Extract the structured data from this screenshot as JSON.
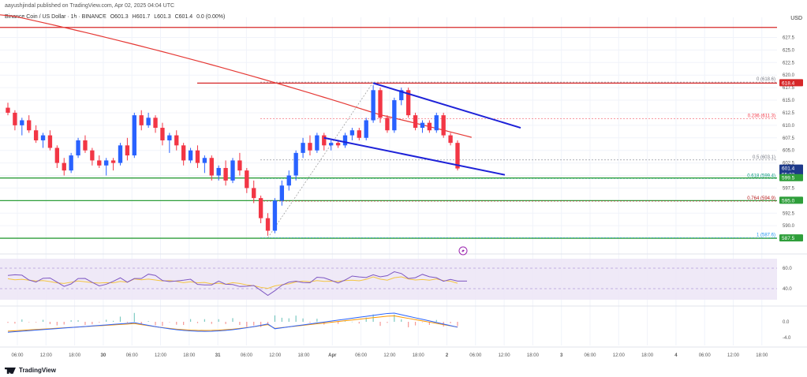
{
  "header": {
    "published": "aayushjindal published on TradingView.com, Apr 02, 2025 04:04 UTC"
  },
  "symbol": {
    "title": "Binance Coin / US Dollar · 1h · BINANCE",
    "open": "O601.3",
    "high": "H601.7",
    "low": "L601.3",
    "close": "C601.4",
    "change": "0.0 (0.00%)"
  },
  "currency": "USD",
  "footer": {
    "brand": "TradingView"
  },
  "colors": {
    "up": "#2962ff",
    "down": "#f23645",
    "ma": "#e53935",
    "channel": "#1e22d8",
    "support": "#2e9e3a",
    "resistance": "#d62728",
    "rsi": "#7e57c2",
    "rsi_ma": "#f4c542",
    "macd": "#2962ff",
    "signal": "#ff9800"
  },
  "chart_data": {
    "type": "candlestick",
    "price_axis": {
      "min": 585,
      "max": 630,
      "ticks": [
        "627.5",
        "625.0",
        "622.5",
        "620.0",
        "617.5",
        "615.0",
        "612.5",
        "610.0",
        "607.5",
        "605.0",
        "602.5",
        "600.0",
        "597.5",
        "595.0",
        "592.5",
        "590.0"
      ]
    },
    "time_axis": [
      "06:00",
      "12:00",
      "18:00",
      "30",
      "06:00",
      "12:00",
      "18:00",
      "31",
      "06:00",
      "12:00",
      "18:00",
      "Apr",
      "06:00",
      "12:00",
      "18:00",
      "2",
      "06:00",
      "12:00",
      "18:00",
      "3",
      "06:00",
      "12:00",
      "18:00",
      "4",
      "06:00",
      "12:00",
      "18:00"
    ],
    "candles": [
      [
        613.5,
        614.5,
        612.0,
        612.5
      ],
      [
        612.5,
        613.0,
        609.0,
        610.0
      ],
      [
        610.0,
        611.5,
        608.0,
        611.0
      ],
      [
        611.0,
        612.0,
        608.5,
        609.0
      ],
      [
        609.0,
        610.0,
        606.5,
        607.0
      ],
      [
        607.0,
        608.5,
        605.5,
        608.0
      ],
      [
        608.0,
        609.0,
        605.0,
        605.5
      ],
      [
        605.5,
        606.0,
        601.5,
        602.5
      ],
      [
        602.5,
        603.5,
        600.0,
        601.0
      ],
      [
        601.0,
        604.5,
        600.5,
        604.0
      ],
      [
        604.0,
        607.5,
        603.5,
        607.0
      ],
      [
        607.0,
        608.0,
        604.5,
        605.0
      ],
      [
        605.0,
        605.5,
        602.0,
        603.0
      ],
      [
        603.0,
        604.0,
        601.5,
        602.0
      ],
      [
        602.0,
        603.5,
        600.0,
        603.0
      ],
      [
        603.0,
        603.5,
        601.0,
        602.5
      ],
      [
        602.5,
        606.5,
        602.0,
        606.0
      ],
      [
        606.0,
        607.5,
        603.0,
        604.0
      ],
      [
        604.0,
        612.5,
        603.5,
        612.0
      ],
      [
        612.0,
        613.0,
        609.0,
        610.0
      ],
      [
        610.0,
        612.5,
        609.5,
        611.5
      ],
      [
        611.5,
        612.0,
        608.5,
        609.5
      ],
      [
        609.5,
        610.5,
        606.0,
        607.0
      ],
      [
        607.0,
        608.5,
        604.5,
        608.0
      ],
      [
        608.0,
        609.0,
        605.0,
        606.0
      ],
      [
        606.0,
        606.5,
        602.0,
        603.0
      ],
      [
        603.0,
        605.5,
        602.5,
        605.0
      ],
      [
        605.0,
        606.0,
        601.5,
        602.5
      ],
      [
        602.5,
        604.0,
        600.5,
        603.5
      ],
      [
        603.5,
        604.0,
        599.0,
        600.0
      ],
      [
        600.0,
        602.0,
        599.0,
        601.5
      ],
      [
        601.5,
        603.0,
        598.0,
        599.0
      ],
      [
        599.0,
        603.5,
        598.5,
        603.0
      ],
      [
        603.0,
        604.5,
        600.0,
        601.0
      ],
      [
        601.0,
        601.5,
        596.5,
        597.5
      ],
      [
        597.5,
        599.0,
        594.5,
        595.5
      ],
      [
        595.5,
        596.0,
        590.5,
        591.5
      ],
      [
        591.5,
        592.5,
        588.0,
        589.0
      ],
      [
        589.0,
        595.5,
        588.5,
        595.0
      ],
      [
        595.0,
        599.0,
        594.0,
        598.0
      ],
      [
        598.0,
        601.0,
        597.0,
        600.0
      ],
      [
        600.0,
        605.0,
        599.0,
        604.5
      ],
      [
        604.5,
        607.5,
        603.5,
        606.5
      ],
      [
        606.5,
        608.0,
        604.0,
        605.0
      ],
      [
        605.0,
        608.5,
        604.5,
        608.0
      ],
      [
        608.0,
        608.5,
        605.0,
        606.0
      ],
      [
        606.0,
        607.0,
        605.0,
        606.5
      ],
      [
        606.5,
        607.0,
        605.5,
        606.0
      ],
      [
        606.0,
        608.5,
        605.5,
        608.0
      ],
      [
        608.0,
        609.5,
        607.0,
        609.0
      ],
      [
        609.0,
        609.5,
        607.0,
        607.5
      ],
      [
        607.5,
        611.5,
        607.0,
        611.0
      ],
      [
        611.0,
        618.0,
        610.5,
        617.0
      ],
      [
        617.0,
        617.5,
        610.5,
        611.5
      ],
      [
        611.5,
        612.0,
        608.5,
        609.0
      ],
      [
        609.0,
        615.5,
        608.5,
        615.0
      ],
      [
        615.0,
        617.5,
        614.0,
        617.0
      ],
      [
        617.0,
        617.5,
        611.5,
        612.0
      ],
      [
        612.0,
        612.5,
        609.0,
        609.5
      ],
      [
        609.5,
        611.0,
        608.5,
        610.5
      ],
      [
        610.5,
        611.0,
        608.5,
        609.0
      ],
      [
        609.0,
        612.5,
        608.5,
        612.0
      ],
      [
        612.0,
        612.5,
        607.5,
        608.0
      ],
      [
        608.0,
        608.5,
        606.0,
        606.5
      ],
      [
        606.5,
        607.0,
        601.0,
        601.4
      ]
    ],
    "indicators": {
      "moving_average_label": "MA",
      "rsi_axis": [
        "60.0",
        "40.0"
      ],
      "macd_axis": [
        "0.0",
        "-4.0"
      ]
    },
    "price_labels": [
      {
        "value": "618.4",
        "kind": "resistance"
      },
      {
        "value": "601.4",
        "kind": "current",
        "sub": "55:23"
      },
      {
        "value": "599.5",
        "kind": "support"
      },
      {
        "value": "595.0",
        "kind": "support"
      },
      {
        "value": "587.5",
        "kind": "support"
      }
    ],
    "fib_levels": [
      {
        "label": "0 (618.6)",
        "value": 618.6
      },
      {
        "label": "0.236 (611.3)",
        "value": 611.3
      },
      {
        "label": "0.5 (603.1)",
        "value": 603.1
      },
      {
        "label": "0.618 (599.4)",
        "value": 599.4
      },
      {
        "label": "0.764 (594.9)",
        "value": 594.9
      },
      {
        "label": "1 (587.6)",
        "value": 587.6
      }
    ],
    "horizontal_lines": [
      {
        "value": 629.5,
        "kind": "resistance"
      },
      {
        "value": 618.4,
        "kind": "resistance"
      },
      {
        "value": 599.5,
        "kind": "support"
      },
      {
        "value": 595.0,
        "kind": "support"
      },
      {
        "value": 587.5,
        "kind": "support"
      }
    ],
    "channel": {
      "upper": [
        [
          52,
          618.4
        ],
        [
          64,
          609.5
        ]
      ],
      "lower": [
        [
          45,
          607.5
        ],
        [
          64,
          599.5
        ]
      ]
    }
  }
}
